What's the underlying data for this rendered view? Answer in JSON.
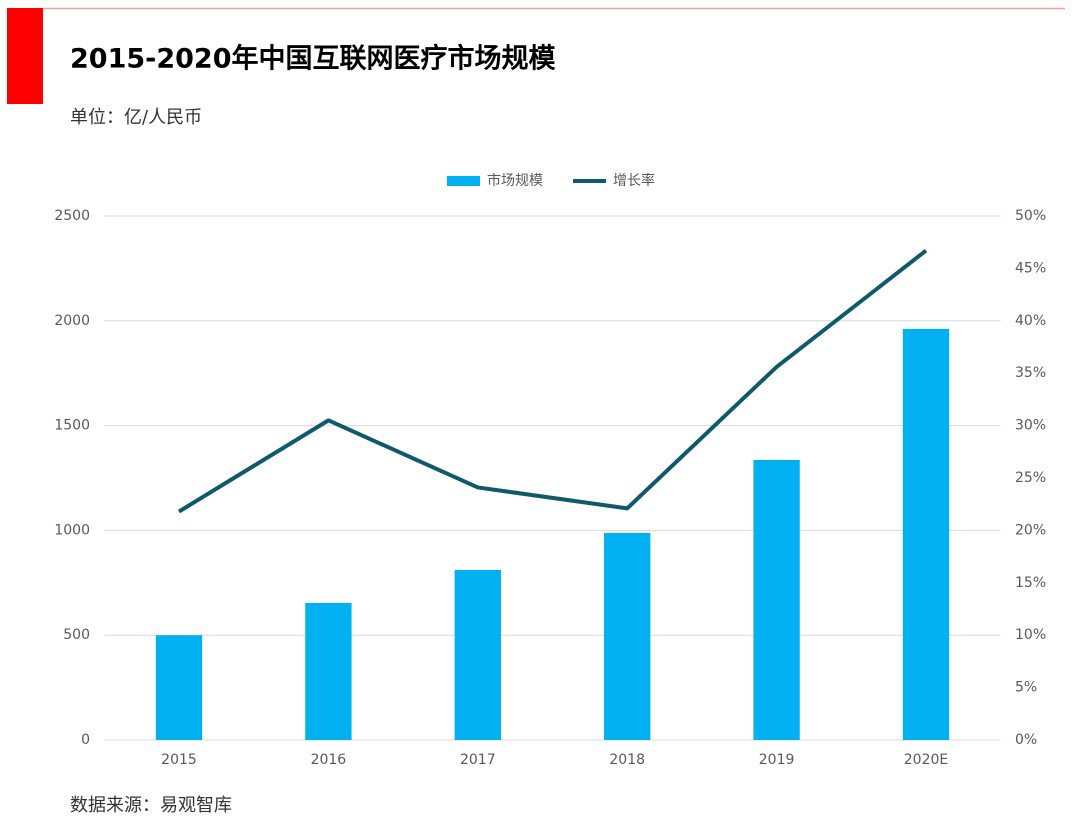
{
  "chart_data": {
    "type": "bar",
    "title": "2015-2020年中国互联网医疗市场规模",
    "subtitle": "单位：亿/人民币",
    "source": "数据来源：易观智库",
    "categories": [
      "2015",
      "2016",
      "2017",
      "2018",
      "2019",
      "2020E"
    ],
    "series": [
      {
        "name": "市场规模",
        "type": "bar",
        "color": "#00b0f0",
        "values": [
          500,
          654,
          811,
          988,
          1336,
          1961
        ]
      },
      {
        "name": "增长率",
        "type": "line",
        "axis": "y2",
        "color": "#0e5a6b",
        "values": [
          21.8,
          30.5,
          24.1,
          22.1,
          35.6,
          46.7
        ]
      }
    ],
    "ylim": [
      0,
      2500
    ],
    "yticks": [
      0,
      500,
      1000,
      1500,
      2000,
      2500
    ],
    "y2lim": [
      0,
      50
    ],
    "y2ticks": [
      {
        "value": 0,
        "label": "0%"
      },
      {
        "value": 5,
        "label": "5%"
      },
      {
        "value": 10,
        "label": "10%"
      },
      {
        "value": 15,
        "label": "15%"
      },
      {
        "value": 20,
        "label": "20%"
      },
      {
        "value": 25,
        "label": "25%"
      },
      {
        "value": 30,
        "label": "30%"
      },
      {
        "value": 35,
        "label": "35%"
      },
      {
        "value": 40,
        "label": "40%"
      },
      {
        "value": 45,
        "label": "45%"
      },
      {
        "value": 50,
        "label": "50%"
      }
    ],
    "grid": true,
    "legend": "top"
  }
}
